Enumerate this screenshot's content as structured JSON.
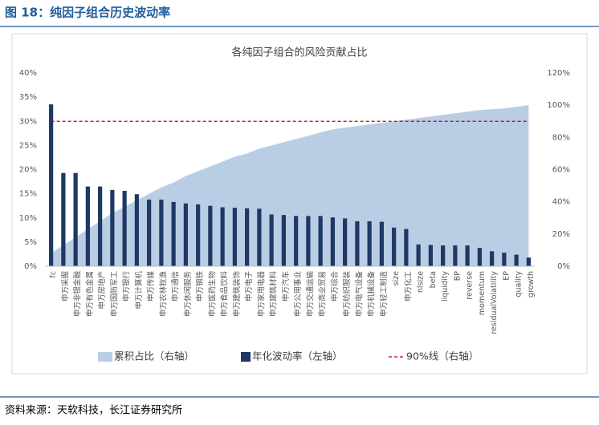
{
  "figure_title": "图 18：纯因子组合历史波动率",
  "source": "资料来源：天软科技，长江证券研究所",
  "chart_data": {
    "type": "bar_area_combo",
    "title": "各纯因子组合的风险贡献占比",
    "categories": [
      "fc",
      "申万采掘",
      "申万非银金融",
      "申万有色金属",
      "申万房地产",
      "申万国防军工",
      "申万银行",
      "申万计算机",
      "申万传媒",
      "申万农林牧渔",
      "申万通信",
      "申万休闲服务",
      "申万钢铁",
      "申万医药生物",
      "申万食品饮料",
      "申万建筑装饰",
      "申万电子",
      "申万家用电器",
      "申万建筑材料",
      "申万汽车",
      "申万公用事业",
      "申万交通运输",
      "申万商业贸易",
      "申万综合",
      "申万纺织服装",
      "申万电气设备",
      "申万机械设备",
      "申万轻工制造",
      "size",
      "申万化工",
      "nlsize",
      "beta",
      "liquidity",
      "BP",
      "reverse",
      "momentum",
      "residualVolatility",
      "EP",
      "quality",
      "growth"
    ],
    "series": [
      {
        "name": "累积占比（右轴）",
        "kind": "area",
        "axis": "y2",
        "color": "#b9cde5",
        "values": [
          8,
          13,
          18,
          23,
          28,
          33,
          37,
          41,
          45,
          49,
          52,
          56,
          59,
          62,
          65,
          68,
          70,
          73,
          75,
          77,
          79,
          81,
          83,
          85,
          86,
          87,
          88,
          89,
          90,
          91,
          92,
          93,
          94,
          95,
          96,
          97,
          97.5,
          98,
          99,
          100
        ]
      },
      {
        "name": "年化波动率（左轴）",
        "kind": "bar",
        "axis": "y",
        "color": "#1f3864",
        "values": [
          33.5,
          19.3,
          19.3,
          16.5,
          16.5,
          15.8,
          15.6,
          14.9,
          13.8,
          13.8,
          13.3,
          13.0,
          12.8,
          12.5,
          12.2,
          12.1,
          12.0,
          11.9,
          10.7,
          10.6,
          10.4,
          10.4,
          10.4,
          10.1,
          9.9,
          9.3,
          9.3,
          9.2,
          8.0,
          7.7,
          4.5,
          4.4,
          4.3,
          4.3,
          4.3,
          3.8,
          3.1,
          2.8,
          2.4,
          1.8
        ]
      }
    ],
    "reference_line": {
      "name": "90%线（右轴）",
      "value": 90,
      "axis": "y2",
      "color": "#c00000"
    },
    "ylim": [
      0,
      40
    ],
    "yticks": [
      {
        "value": 0,
        "label": "0%"
      },
      {
        "value": 5,
        "label": "5%"
      },
      {
        "value": 10,
        "label": "10%"
      },
      {
        "value": 15,
        "label": "15%"
      },
      {
        "value": 20,
        "label": "20%"
      },
      {
        "value": 25,
        "label": "25%"
      },
      {
        "value": 30,
        "label": "30%"
      },
      {
        "value": 35,
        "label": "35%"
      },
      {
        "value": 40,
        "label": "40%"
      }
    ],
    "y2lim": [
      0,
      120
    ],
    "y2ticks": [
      {
        "value": 0,
        "label": "0%"
      },
      {
        "value": 20,
        "label": "20%"
      },
      {
        "value": 40,
        "label": "40%"
      },
      {
        "value": 60,
        "label": "60%"
      },
      {
        "value": 80,
        "label": "80%"
      },
      {
        "value": 100,
        "label": "100%"
      },
      {
        "value": 120,
        "label": "120%"
      }
    ]
  }
}
